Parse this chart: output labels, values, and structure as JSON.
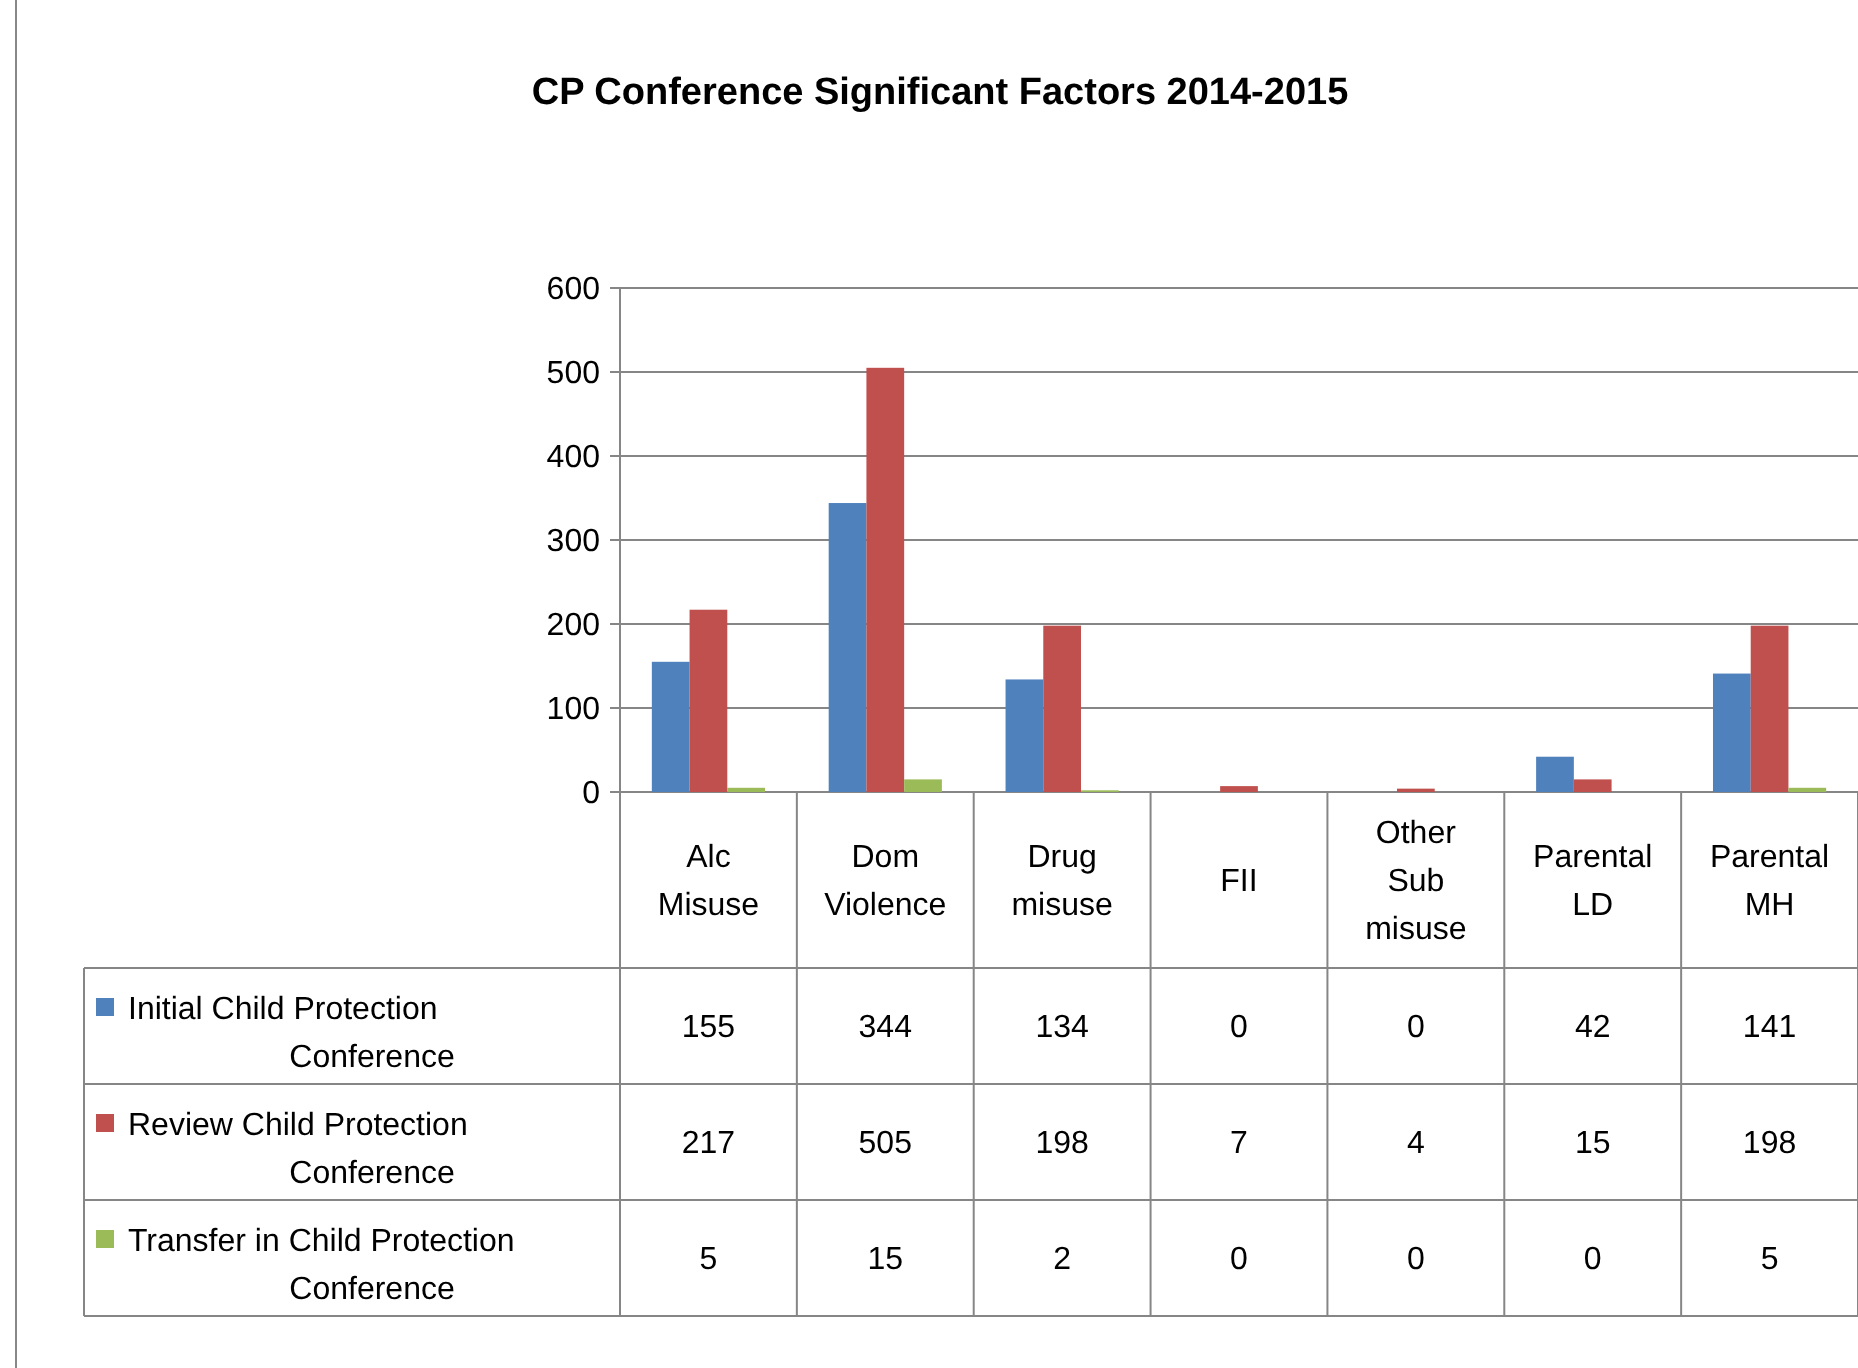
{
  "chart_data": {
    "type": "bar",
    "title": "CP Conference Significant Factors 2014-2015",
    "categories": [
      "Alc Misuse",
      "Dom Violence",
      "Drug misuse",
      "FII",
      "Other Sub misuse",
      "Parental LD",
      "Parental MH"
    ],
    "series": [
      {
        "name": "Initial Child Protection Conference",
        "color": "#4f81bd",
        "values": [
          155,
          344,
          134,
          0,
          0,
          42,
          141
        ]
      },
      {
        "name": "Review Child Protection Conference",
        "color": "#c0504d",
        "values": [
          217,
          505,
          198,
          7,
          4,
          15,
          198
        ]
      },
      {
        "name": "Transfer in Child Protection Conference",
        "color": "#9bbb59",
        "values": [
          5,
          15,
          2,
          0,
          0,
          0,
          5
        ]
      }
    ],
    "ylim": [
      0,
      600
    ],
    "yticks": [
      0,
      100,
      200,
      300,
      400,
      500,
      600
    ],
    "grid": "y",
    "legend": "bottom",
    "data_labels": true
  }
}
